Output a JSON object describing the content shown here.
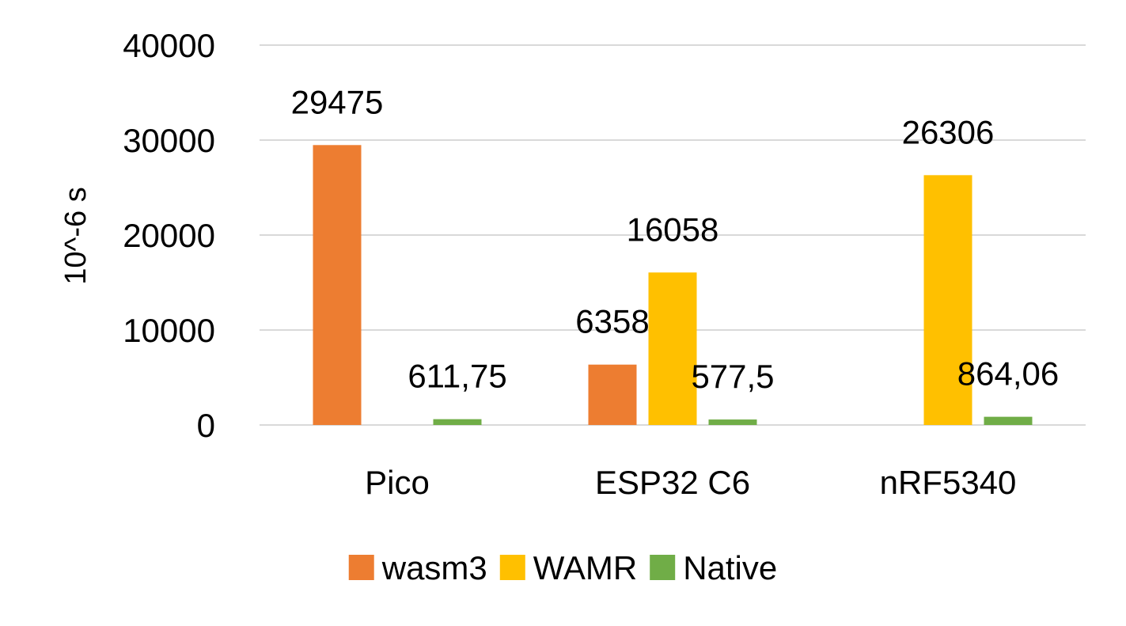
{
  "chart_data": {
    "type": "bar",
    "title": "",
    "xlabel": "",
    "ylabel": "10^-6 s",
    "ylim": [
      0,
      40000
    ],
    "yticks": [
      0,
      10000,
      20000,
      30000,
      40000
    ],
    "ytick_labels": [
      "0",
      "10000",
      "20000",
      "30000",
      "40000"
    ],
    "grid": true,
    "legend_position": "bottom",
    "categories": [
      "Pico",
      "ESP32 C6",
      "nRF5340"
    ],
    "series": [
      {
        "name": "wasm3",
        "color": "#ED7D31",
        "values": [
          29475,
          6358,
          null
        ],
        "labels": [
          "29475",
          "6358",
          ""
        ]
      },
      {
        "name": "WAMR",
        "color": "#FFC000",
        "values": [
          null,
          16058,
          26306
        ],
        "labels": [
          "",
          "16058",
          "26306"
        ]
      },
      {
        "name": "Native",
        "color": "#70AD47",
        "values": [
          611.75,
          577.5,
          864.06
        ],
        "labels": [
          "611,75",
          "577,5",
          "864,06"
        ]
      }
    ]
  }
}
